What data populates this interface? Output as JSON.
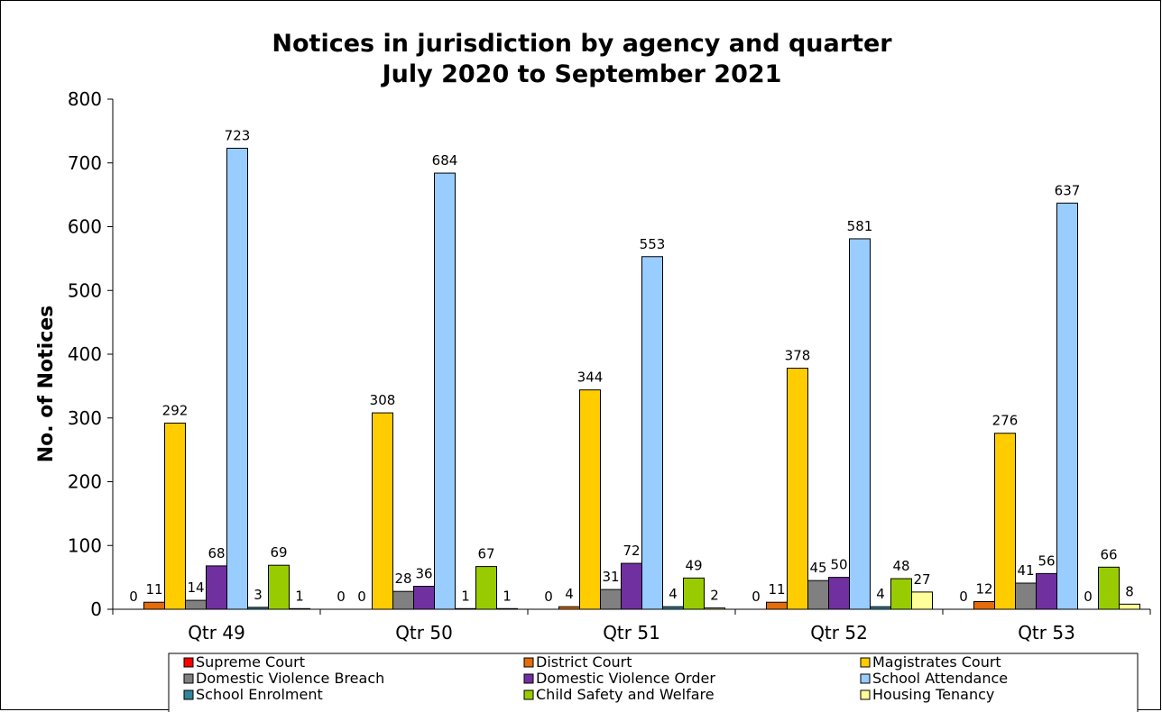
{
  "chart_data": {
    "type": "bar",
    "title": "Notices in jurisdiction by agency and quarter",
    "subtitle": "July 2020 to September 2021",
    "xlabel": "",
    "ylabel": "No. of Notices",
    "ylim": [
      0,
      800
    ],
    "yticks": [
      "0",
      "100",
      "200",
      "300",
      "400",
      "500",
      "600",
      "700",
      "800"
    ],
    "categories": [
      "Qtr 49",
      "Qtr 50",
      "Qtr 51",
      "Qtr 52",
      "Qtr 53"
    ],
    "grid": false,
    "legend_position": "bottom",
    "series": [
      {
        "name": "Supreme Court",
        "color": "#ff0000",
        "values": [
          0,
          0,
          0,
          0,
          0
        ],
        "labels": [
          "0",
          "0",
          "0",
          "0",
          "0"
        ]
      },
      {
        "name": "District Court",
        "color": "#e46c0a",
        "values": [
          11,
          0,
          4,
          11,
          12
        ],
        "labels": [
          "11",
          "0",
          "4",
          "11",
          "12"
        ]
      },
      {
        "name": "Magistrates Court",
        "color": "#ffcc00",
        "values": [
          292,
          308,
          344,
          378,
          276
        ],
        "labels": [
          "292",
          "308",
          "344",
          "378",
          "276"
        ]
      },
      {
        "name": "Domestic Violence Breach",
        "color": "#808080",
        "values": [
          14,
          28,
          31,
          45,
          41
        ],
        "labels": [
          "14",
          "28",
          "31",
          "45",
          "41"
        ]
      },
      {
        "name": "Domestic Violence Order",
        "color": "#7030a0",
        "values": [
          68,
          36,
          72,
          50,
          56
        ],
        "labels": [
          "68",
          "36",
          "72",
          "50",
          "56"
        ]
      },
      {
        "name": "School Attendance",
        "color": "#99ccff",
        "values": [
          723,
          684,
          553,
          581,
          637
        ],
        "labels": [
          "723",
          "684",
          "553",
          "581",
          "637"
        ]
      },
      {
        "name": "School Enrolment",
        "color": "#31849b",
        "values": [
          3,
          1,
          4,
          4,
          0
        ],
        "labels": [
          "3",
          "1",
          "4",
          "4",
          "0"
        ]
      },
      {
        "name": "Child Safety and Welfare",
        "color": "#99cc00",
        "values": [
          69,
          67,
          49,
          48,
          66
        ],
        "labels": [
          "69",
          "67",
          "49",
          "48",
          "66"
        ]
      },
      {
        "name": "Housing Tenancy",
        "color": "#ffff99",
        "values": [
          1,
          1,
          2,
          27,
          8
        ],
        "labels": [
          "1",
          "1",
          "2",
          "27",
          "8"
        ]
      }
    ]
  }
}
